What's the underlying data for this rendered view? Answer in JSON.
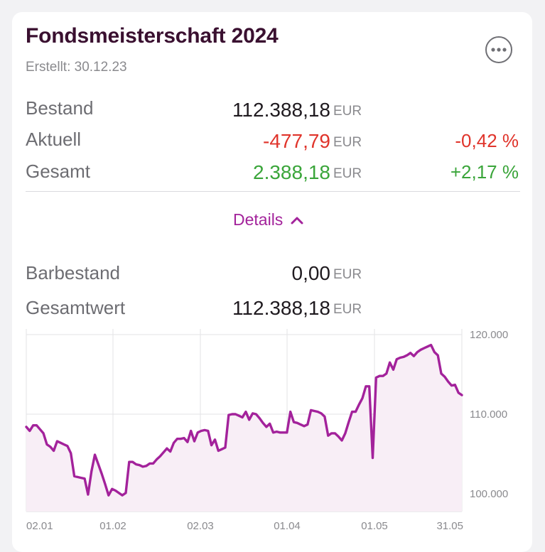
{
  "header": {
    "title": "Fondsmeisterschaft 2024",
    "created": "Erstellt: 30.12.23"
  },
  "more_icon": "ellipsis-circle-icon",
  "rows": {
    "bestand": {
      "label": "Bestand",
      "value": "112.388,18",
      "unit": "EUR"
    },
    "aktuell": {
      "label": "Aktuell",
      "value": "-477,79",
      "unit": "EUR",
      "pct": "-0,42 %"
    },
    "gesamt": {
      "label": "Gesamt",
      "value": "2.388,18",
      "unit": "EUR",
      "pct": "+2,17 %"
    },
    "barbestand": {
      "label": "Barbestand",
      "value": "0,00",
      "unit": "EUR"
    },
    "gesamtwert": {
      "label": "Gesamtwert",
      "value": "112.388,18",
      "unit": "EUR"
    }
  },
  "details_toggle": {
    "label": "Details",
    "icon": "chevron-up-icon"
  },
  "colors": {
    "negative": "#e0342b",
    "positive": "#3aa53a",
    "accent": "#a3239b",
    "line": "#a3229b"
  },
  "chart_data": {
    "type": "area",
    "x_ticks": [
      "02.01",
      "01.02",
      "02.03",
      "01.04",
      "01.05",
      "31.05"
    ],
    "y_ticks": [
      "100.000",
      "110.000",
      "120.000"
    ],
    "ylim": [
      98000,
      121000
    ],
    "grid": true,
    "values": [
      108400,
      107900,
      108600,
      108600,
      108100,
      107600,
      106200,
      105900,
      105400,
      106600,
      106400,
      106200,
      106000,
      105100,
      102200,
      102100,
      102000,
      101900,
      99900,
      102800,
      104900,
      103700,
      102500,
      101200,
      99800,
      100600,
      100400,
      100100,
      99800,
      100100,
      104000,
      104000,
      103700,
      103600,
      103400,
      103500,
      103800,
      103800,
      104300,
      104700,
      105200,
      105700,
      105300,
      106400,
      106900,
      106900,
      107000,
      106500,
      107900,
      106600,
      107700,
      107900,
      108000,
      107900,
      106100,
      106800,
      105400,
      105600,
      105800,
      109900,
      110000,
      110000,
      109800,
      109600,
      110300,
      109300,
      110100,
      110000,
      109500,
      108900,
      108400,
      108800,
      107700,
      107800,
      107700,
      107700,
      107700,
      110300,
      109000,
      108900,
      108700,
      108500,
      108700,
      110500,
      110400,
      110300,
      110100,
      109700,
      107300,
      107600,
      107600,
      107200,
      106700,
      107600,
      109000,
      110300,
      110300,
      111200,
      112000,
      113500,
      113500,
      104500,
      114600,
      114800,
      114800,
      115100,
      116500,
      115600,
      116900,
      117100,
      117200,
      117400,
      117700,
      117300,
      117800,
      118100,
      118300,
      118500,
      118700,
      117800,
      117400,
      115100,
      114700,
      114100,
      113600,
      113700,
      112700,
      112400
    ]
  }
}
